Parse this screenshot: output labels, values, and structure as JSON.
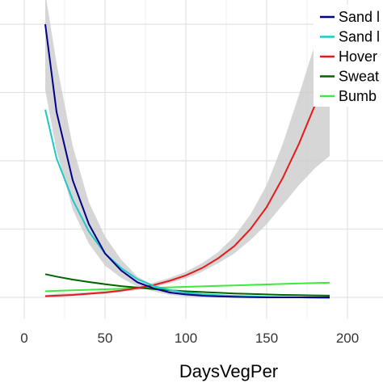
{
  "chart_data": {
    "type": "line",
    "xlabel": "DaysVegPer",
    "ylabel": "",
    "title": "",
    "x_ticks": [
      0,
      50,
      100,
      150,
      200
    ],
    "xlim": [
      -5,
      207
    ],
    "ylim": [
      -0.3,
      12
    ],
    "grid": true,
    "legend_position": "top-right",
    "x": [
      13,
      20,
      30,
      40,
      50,
      60,
      70,
      80,
      90,
      100,
      110,
      120,
      130,
      140,
      150,
      160,
      170,
      180,
      189
    ],
    "series": [
      {
        "name": "Sand l",
        "color": "#00008b",
        "values": [
          11.2,
          7.6,
          4.8,
          3.0,
          1.8,
          1.1,
          0.62,
          0.37,
          0.2,
          0.12,
          0.07,
          0.04,
          0.02,
          0.01,
          0.0,
          0.0,
          0.0,
          0.0,
          0.0
        ]
      },
      {
        "name": "Sand l",
        "color": "#1fc8c8",
        "values": [
          7.7,
          5.7,
          4.0,
          2.7,
          1.8,
          1.2,
          0.75,
          0.47,
          0.3,
          0.19,
          0.13,
          0.09,
          0.06,
          0.04,
          0.02,
          0.01,
          0.0,
          -0.02,
          -0.03
        ]
      },
      {
        "name": "Hover",
        "color": "#e41a1c",
        "values": [
          0.05,
          0.07,
          0.1,
          0.15,
          0.2,
          0.28,
          0.38,
          0.5,
          0.68,
          0.9,
          1.2,
          1.6,
          2.1,
          2.8,
          3.7,
          4.9,
          6.3,
          7.9,
          8.7
        ]
      },
      {
        "name": "Sweat",
        "color": "#006400",
        "values": [
          0.95,
          0.85,
          0.73,
          0.63,
          0.54,
          0.46,
          0.4,
          0.34,
          0.29,
          0.25,
          0.22,
          0.19,
          0.16,
          0.14,
          0.12,
          0.1,
          0.09,
          0.08,
          0.07
        ]
      },
      {
        "name": "Bumb",
        "color": "#3ee83e",
        "values": [
          0.25,
          0.27,
          0.29,
          0.31,
          0.33,
          0.35,
          0.37,
          0.39,
          0.41,
          0.43,
          0.45,
          0.47,
          0.49,
          0.51,
          0.53,
          0.55,
          0.57,
          0.59,
          0.6
        ]
      }
    ],
    "confidence_band": {
      "series": "Hover",
      "lower": [
        0.0,
        0.0,
        0.05,
        0.1,
        0.15,
        0.22,
        0.3,
        0.42,
        0.58,
        0.78,
        1.05,
        1.4,
        1.8,
        2.35,
        3.0,
        3.8,
        4.6,
        5.3,
        5.8
      ],
      "upper": [
        0.1,
        0.15,
        0.18,
        0.22,
        0.27,
        0.35,
        0.46,
        0.6,
        0.8,
        1.05,
        1.4,
        1.85,
        2.5,
        3.4,
        4.6,
        6.3,
        8.3,
        10.4,
        11.6
      ]
    },
    "confidence_band_2": {
      "series": "Sand l",
      "lower": [
        8.5,
        6.0,
        3.6,
        2.2,
        1.3,
        0.8,
        0.45,
        0.25,
        0.1,
        0.03,
        0.0,
        0.0,
        0.0,
        0.0,
        0.0,
        0.0,
        0.0,
        0.0,
        0.0
      ],
      "upper": [
        12.5,
        9.6,
        6.2,
        3.9,
        2.5,
        1.55,
        0.85,
        0.5,
        0.3,
        0.2,
        0.13,
        0.09,
        0.06,
        0.04,
        0.03,
        0.03,
        0.03,
        0.03,
        0.03
      ]
    }
  }
}
